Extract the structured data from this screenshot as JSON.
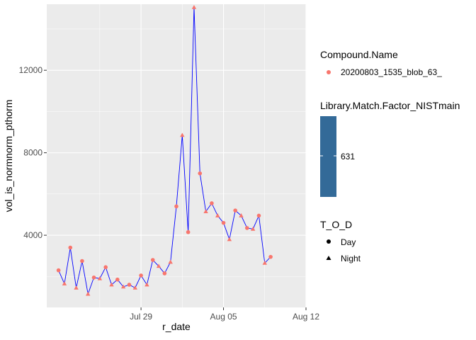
{
  "chart_data": {
    "type": "scatter",
    "xlabel": "r_date",
    "ylabel": "vol_is_normnorm_pthorm",
    "x_ticks": [
      "Jul 29",
      "Aug 05",
      "Aug 12"
    ],
    "y_ticks": [
      4000,
      8000,
      12000
    ],
    "xlim": [
      "2020-07-21",
      "2020-08-12"
    ],
    "ylim": [
      500,
      15200
    ],
    "grid": true,
    "legend_position": "right",
    "point_color": "#F8766D",
    "line_color": "#0000FF",
    "panel_background": "#EBEBEB",
    "grid_color": "#FFFFFF",
    "points": [
      {
        "x": "2020-07-22",
        "y": 2300,
        "tod": "Day"
      },
      {
        "x": "2020-07-22T12:00",
        "y": 1650,
        "tod": "Night"
      },
      {
        "x": "2020-07-23",
        "y": 3400,
        "tod": "Day"
      },
      {
        "x": "2020-07-23T12:00",
        "y": 1450,
        "tod": "Night"
      },
      {
        "x": "2020-07-24",
        "y": 2750,
        "tod": "Day"
      },
      {
        "x": "2020-07-24T12:00",
        "y": 1150,
        "tod": "Night"
      },
      {
        "x": "2020-07-25",
        "y": 1950,
        "tod": "Day"
      },
      {
        "x": "2020-07-25T12:00",
        "y": 1900,
        "tod": "Night"
      },
      {
        "x": "2020-07-26",
        "y": 2450,
        "tod": "Day"
      },
      {
        "x": "2020-07-26T12:00",
        "y": 1600,
        "tod": "Night"
      },
      {
        "x": "2020-07-27",
        "y": 1850,
        "tod": "Day"
      },
      {
        "x": "2020-07-27T12:00",
        "y": 1500,
        "tod": "Night"
      },
      {
        "x": "2020-07-28",
        "y": 1600,
        "tod": "Day"
      },
      {
        "x": "2020-07-28T12:00",
        "y": 1450,
        "tod": "Night"
      },
      {
        "x": "2020-07-29",
        "y": 2050,
        "tod": "Day"
      },
      {
        "x": "2020-07-29T12:00",
        "y": 1600,
        "tod": "Night"
      },
      {
        "x": "2020-07-30",
        "y": 2800,
        "tod": "Day"
      },
      {
        "x": "2020-07-30T12:00",
        "y": 2500,
        "tod": "Night"
      },
      {
        "x": "2020-07-31",
        "y": 2150,
        "tod": "Day"
      },
      {
        "x": "2020-07-31T12:00",
        "y": 2700,
        "tod": "Night"
      },
      {
        "x": "2020-08-01",
        "y": 5400,
        "tod": "Day"
      },
      {
        "x": "2020-08-01T12:00",
        "y": 8850,
        "tod": "Night"
      },
      {
        "x": "2020-08-02",
        "y": 4150,
        "tod": "Day"
      },
      {
        "x": "2020-08-02T12:00",
        "y": 15050,
        "tod": "Night"
      },
      {
        "x": "2020-08-03",
        "y": 7000,
        "tod": "Day"
      },
      {
        "x": "2020-08-03T12:00",
        "y": 5150,
        "tod": "Night"
      },
      {
        "x": "2020-08-04",
        "y": 5550,
        "tod": "Day"
      },
      {
        "x": "2020-08-04T12:00",
        "y": 4950,
        "tod": "Night"
      },
      {
        "x": "2020-08-05",
        "y": 4600,
        "tod": "Day"
      },
      {
        "x": "2020-08-05T12:00",
        "y": 3800,
        "tod": "Night"
      },
      {
        "x": "2020-08-06",
        "y": 5200,
        "tod": "Day"
      },
      {
        "x": "2020-08-06T12:00",
        "y": 4950,
        "tod": "Night"
      },
      {
        "x": "2020-08-07",
        "y": 4350,
        "tod": "Day"
      },
      {
        "x": "2020-08-07T12:00",
        "y": 4300,
        "tod": "Night"
      },
      {
        "x": "2020-08-08",
        "y": 4950,
        "tod": "Day"
      },
      {
        "x": "2020-08-08T12:00",
        "y": 2650,
        "tod": "Night"
      },
      {
        "x": "2020-08-09",
        "y": 2950,
        "tod": "Day"
      }
    ]
  },
  "legend": {
    "compound": {
      "title": "Compound.Name",
      "entry": "20200803_1535_blob_63_",
      "color": "#F8766D"
    },
    "library": {
      "title": "Library.Match.Factor_NISTmain",
      "value": "631",
      "color": "#336A98"
    },
    "tod": {
      "title": "T_O_D",
      "entries": [
        "Day",
        "Night"
      ]
    }
  }
}
